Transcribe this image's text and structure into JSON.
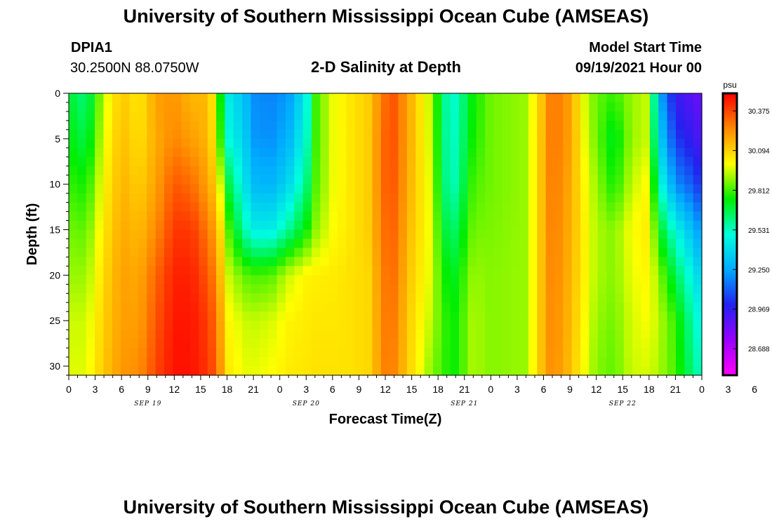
{
  "header": {
    "title": "University of Southern Mississippi Ocean Cube (AMSEAS)",
    "station": "DPIA1",
    "coords": "30.2500N  88.0750W",
    "subtitle": "2-D Salinity at Depth",
    "model_start_label": "Model Start Time",
    "model_start_value": "09/19/2021 Hour 00"
  },
  "footer": {
    "title": "University of Southern Mississippi Ocean Cube (AMSEAS)"
  },
  "chart_data": {
    "type": "heatmap",
    "title": "2-D Salinity at Depth",
    "xlabel": "Forecast Time(Z)",
    "ylabel": "Depth (ft)",
    "x_range_hours": [
      0,
      72
    ],
    "y_range_ft": [
      0,
      31
    ],
    "y_inverted": true,
    "x_tick_labels": [
      "0",
      "3",
      "6",
      "9",
      "12",
      "15",
      "18",
      "21",
      "0",
      "3",
      "6",
      "9",
      "12",
      "15",
      "18",
      "21",
      "0",
      "3",
      "6",
      "9",
      "12",
      "15",
      "18",
      "21",
      "0",
      "3",
      "6",
      "9",
      "12",
      "15",
      "18",
      "21",
      "0"
    ],
    "x_date_labels": [
      {
        "label": "SEP 19",
        "hour": 9
      },
      {
        "label": "SEP 20",
        "hour": 27
      },
      {
        "label": "SEP 21",
        "hour": 45
      },
      {
        "label": "SEP 22",
        "hour": 63
      }
    ],
    "y_ticks": [
      0,
      5,
      10,
      15,
      20,
      25,
      30
    ],
    "colorbar": {
      "unit": "psu",
      "min": 28.5,
      "max": 30.5,
      "tick_values": [
        30.375,
        30.094,
        29.812,
        29.531,
        29.25,
        28.969,
        28.688
      ],
      "tick_labels": [
        "30.375",
        "30.094",
        "29.812",
        "29.531",
        "29.250",
        "28.969",
        "28.688"
      ],
      "colors": [
        "#ff00ff",
        "#9900ff",
        "#2222ee",
        "#00aaff",
        "#00ffdd",
        "#00ee00",
        "#ffff00",
        "#ff8800",
        "#ff0000"
      ]
    },
    "profiles": [
      {
        "t": 0,
        "v": [
          29.7,
          29.74,
          29.8,
          29.86,
          29.9,
          29.95,
          29.97
        ]
      },
      {
        "t": 2,
        "v": [
          29.6,
          29.66,
          29.76,
          29.84,
          29.9,
          29.95,
          29.97
        ]
      },
      {
        "t": 4,
        "v": [
          29.95,
          29.98,
          30.02,
          30.05,
          30.08,
          30.1,
          30.12
        ]
      },
      {
        "t": 6,
        "v": [
          30.12,
          30.14,
          30.16,
          30.18,
          30.2,
          30.2,
          30.22
        ]
      },
      {
        "t": 8,
        "v": [
          30.04,
          30.06,
          30.1,
          30.14,
          30.18,
          30.2,
          30.24
        ]
      },
      {
        "t": 10,
        "v": [
          30.2,
          30.18,
          30.2,
          30.25,
          30.32,
          30.35,
          30.38
        ]
      },
      {
        "t": 12,
        "v": [
          30.22,
          30.25,
          30.34,
          30.4,
          30.44,
          30.46,
          30.47
        ]
      },
      {
        "t": 14,
        "v": [
          30.15,
          30.2,
          30.3,
          30.4,
          30.44,
          30.46,
          30.47
        ]
      },
      {
        "t": 16,
        "v": [
          30.15,
          30.15,
          30.18,
          30.26,
          30.33,
          30.38,
          30.4
        ]
      },
      {
        "t": 17,
        "v": [
          29.85,
          29.9,
          30.05,
          30.15,
          30.2,
          30.25,
          30.28
        ]
      },
      {
        "t": 18,
        "v": [
          29.45,
          29.5,
          29.7,
          29.85,
          29.96,
          30.02,
          30.05
        ]
      },
      {
        "t": 20,
        "v": [
          29.32,
          29.36,
          29.42,
          29.55,
          29.84,
          29.95,
          29.98
        ]
      },
      {
        "t": 21,
        "v": [
          29.2,
          29.22,
          29.3,
          29.45,
          29.82,
          29.94,
          29.98
        ]
      },
      {
        "t": 23,
        "v": [
          29.18,
          29.2,
          29.28,
          29.44,
          29.83,
          29.96,
          30.0
        ]
      },
      {
        "t": 25,
        "v": [
          29.22,
          29.28,
          29.38,
          29.58,
          29.95,
          30.02,
          30.04
        ]
      },
      {
        "t": 27,
        "v": [
          29.45,
          29.5,
          29.6,
          29.75,
          30.02,
          30.04,
          30.05
        ]
      },
      {
        "t": 28,
        "v": [
          29.8,
          29.8,
          29.82,
          29.88,
          30.03,
          30.05,
          30.06
        ]
      },
      {
        "t": 30,
        "v": [
          29.98,
          29.98,
          29.98,
          30.0,
          30.04,
          30.05,
          30.06
        ]
      },
      {
        "t": 32,
        "v": [
          30.05,
          30.05,
          30.05,
          30.05,
          30.06,
          30.06,
          30.06
        ]
      },
      {
        "t": 34,
        "v": [
          30.1,
          30.1,
          30.1,
          30.1,
          30.08,
          30.08,
          30.08
        ]
      },
      {
        "t": 36,
        "v": [
          30.3,
          30.32,
          30.32,
          30.3,
          30.28,
          30.27,
          30.26
        ]
      },
      {
        "t": 37,
        "v": [
          30.34,
          30.34,
          30.33,
          30.31,
          30.29,
          30.27,
          30.25
        ]
      },
      {
        "t": 39,
        "v": [
          30.15,
          30.15,
          30.14,
          30.12,
          30.1,
          30.08,
          30.07
        ]
      },
      {
        "t": 41,
        "v": [
          29.95,
          29.96,
          29.98,
          29.99,
          29.98,
          29.95,
          29.9
        ]
      },
      {
        "t": 43,
        "v": [
          29.55,
          29.56,
          29.58,
          29.66,
          29.74,
          29.78,
          29.78
        ]
      },
      {
        "t": 44,
        "v": [
          29.52,
          29.53,
          29.55,
          29.64,
          29.72,
          29.76,
          29.76
        ]
      },
      {
        "t": 46,
        "v": [
          29.75,
          29.77,
          29.82,
          29.86,
          29.9,
          29.92,
          29.92
        ]
      },
      {
        "t": 48,
        "v": [
          29.86,
          29.86,
          29.86,
          29.87,
          29.88,
          29.88,
          29.88
        ]
      },
      {
        "t": 52,
        "v": [
          29.9,
          29.9,
          29.9,
          29.9,
          29.9,
          29.9,
          29.9
        ]
      },
      {
        "t": 54,
        "v": [
          30.15,
          30.16,
          30.16,
          30.16,
          30.16,
          30.16,
          30.16
        ]
      },
      {
        "t": 55,
        "v": [
          30.3,
          30.3,
          30.29,
          30.28,
          30.27,
          30.26,
          30.25
        ]
      },
      {
        "t": 57,
        "v": [
          30.2,
          30.2,
          30.18,
          30.17,
          30.16,
          30.15,
          30.14
        ]
      },
      {
        "t": 59,
        "v": [
          29.92,
          29.94,
          29.98,
          30.0,
          30.0,
          29.98,
          29.96
        ]
      },
      {
        "t": 60,
        "v": [
          29.85,
          29.86,
          29.9,
          29.92,
          29.92,
          29.9,
          29.88
        ]
      },
      {
        "t": 62,
        "v": [
          29.8,
          29.7,
          29.76,
          29.88,
          29.88,
          29.86,
          29.84
        ]
      },
      {
        "t": 64,
        "v": [
          29.9,
          29.9,
          29.94,
          30.0,
          29.98,
          29.96,
          29.95
        ]
      },
      {
        "t": 66,
        "v": [
          29.95,
          29.95,
          30.02,
          30.04,
          30.02,
          30.0,
          29.96
        ]
      },
      {
        "t": 67,
        "v": [
          29.3,
          29.4,
          29.55,
          29.75,
          29.9,
          29.94,
          29.92
        ]
      },
      {
        "t": 69,
        "v": [
          28.95,
          29.05,
          29.2,
          29.48,
          29.66,
          29.8,
          29.82
        ]
      },
      {
        "t": 71,
        "v": [
          28.88,
          28.95,
          29.1,
          29.3,
          29.45,
          29.55,
          29.6
        ]
      },
      {
        "t": 72,
        "v": [
          28.85,
          28.9,
          29.0,
          29.2,
          29.35,
          29.45,
          29.52
        ]
      }
    ],
    "profile_depths": [
      0,
      5,
      10,
      15,
      20,
      25,
      31
    ]
  }
}
